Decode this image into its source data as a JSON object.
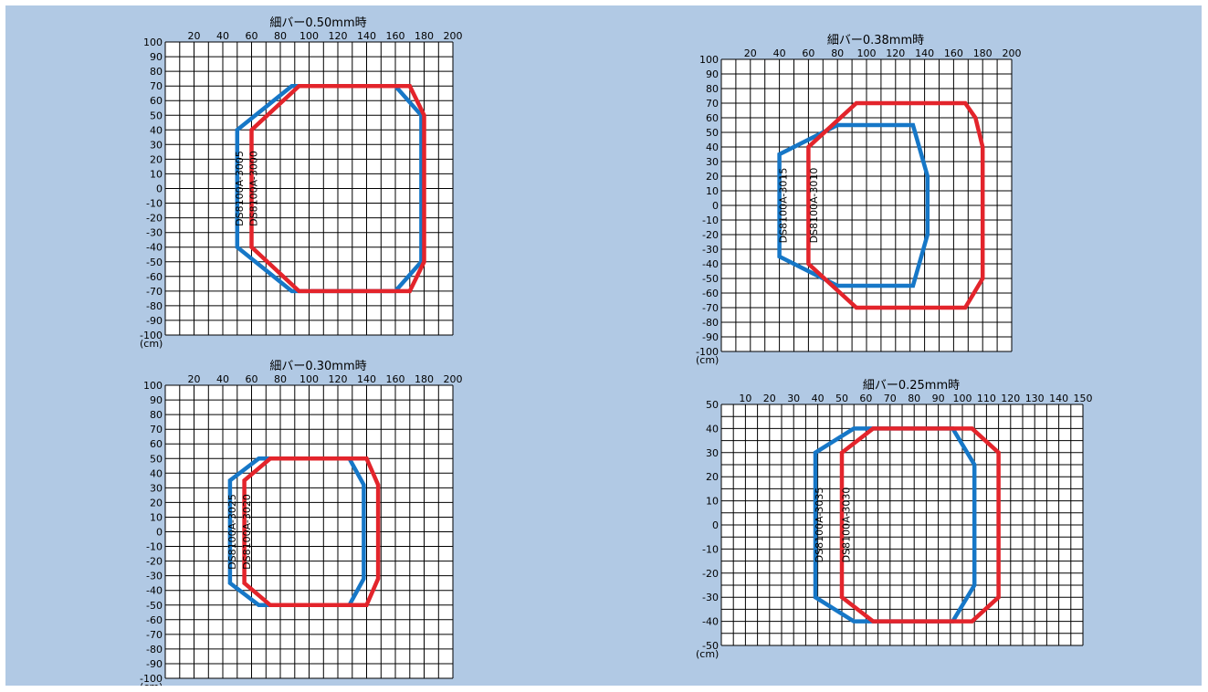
{
  "colors": {
    "background": "#b1c9e4",
    "plot_area": "#ffffff",
    "grid": "#000000",
    "blue_series": "#1677c7",
    "red_series": "#e3242b"
  },
  "chart_data": [
    {
      "type": "area",
      "title": "細バー0.50mm時",
      "unit_label": "(cm)",
      "x_ticks": [
        "20",
        "40",
        "60",
        "80",
        "100",
        "120",
        "140",
        "160",
        "180",
        "200"
      ],
      "y_ticks": [
        "100",
        "90",
        "80",
        "70",
        "60",
        "50",
        "40",
        "30",
        "20",
        "10",
        "0",
        "-10",
        "-20",
        "-30",
        "-40",
        "-50",
        "-60",
        "-70",
        "-80",
        "-90",
        "-100"
      ],
      "xlim": [
        0,
        200
      ],
      "ylim": [
        -100,
        100
      ],
      "x_step": 10,
      "y_step": 10,
      "series": [
        {
          "name": "DS8100A-3005",
          "color": "blue",
          "points": [
            [
              50,
              40
            ],
            [
              50,
              -40
            ],
            [
              88,
              -70
            ],
            [
              160,
              -70
            ],
            [
              178,
              -50
            ],
            [
              178,
              50
            ],
            [
              160,
              70
            ],
            [
              88,
              70
            ]
          ]
        },
        {
          "name": "DS8100A-3000",
          "color": "red",
          "points": [
            [
              60,
              40
            ],
            [
              60,
              -40
            ],
            [
              93,
              -70
            ],
            [
              170,
              -70
            ],
            [
              180,
              -50
            ],
            [
              180,
              50
            ],
            [
              170,
              70
            ],
            [
              93,
              70
            ]
          ]
        }
      ]
    },
    {
      "type": "area",
      "title": "細バー0.38mm時",
      "unit_label": "(cm)",
      "x_ticks": [
        "20",
        "40",
        "60",
        "80",
        "100",
        "120",
        "140",
        "160",
        "180",
        "200"
      ],
      "y_ticks": [
        "100",
        "90",
        "80",
        "70",
        "60",
        "50",
        "40",
        "30",
        "20",
        "10",
        "0",
        "-10",
        "-20",
        "-30",
        "-40",
        "-50",
        "-60",
        "-70",
        "-80",
        "-90",
        "-100"
      ],
      "xlim": [
        0,
        200
      ],
      "ylim": [
        -100,
        100
      ],
      "x_step": 10,
      "y_step": 10,
      "series": [
        {
          "name": "DS8100A-3015",
          "color": "blue",
          "points": [
            [
              40,
              35
            ],
            [
              40,
              -35
            ],
            [
              80,
              -55
            ],
            [
              132,
              -55
            ],
            [
              142,
              -20
            ],
            [
              142,
              20
            ],
            [
              132,
              55
            ],
            [
              80,
              55
            ]
          ]
        },
        {
          "name": "DS8100A-3010",
          "color": "red",
          "points": [
            [
              60,
              40
            ],
            [
              60,
              -40
            ],
            [
              93,
              -70
            ],
            [
              168,
              -70
            ],
            [
              180,
              -50
            ],
            [
              180,
              40
            ],
            [
              175,
              60
            ],
            [
              168,
              70
            ],
            [
              93,
              70
            ]
          ]
        }
      ]
    },
    {
      "type": "area",
      "title": "細バー0.30mm時",
      "unit_label": "(cm)",
      "x_ticks": [
        "20",
        "40",
        "60",
        "80",
        "100",
        "120",
        "140",
        "160",
        "180",
        "200"
      ],
      "y_ticks": [
        "100",
        "90",
        "80",
        "70",
        "60",
        "50",
        "40",
        "30",
        "20",
        "10",
        "0",
        "-10",
        "-20",
        "-30",
        "-40",
        "-50",
        "-60",
        "-70",
        "-80",
        "-90",
        "-100"
      ],
      "xlim": [
        0,
        200
      ],
      "ylim": [
        -100,
        100
      ],
      "x_step": 10,
      "y_step": 10,
      "series": [
        {
          "name": "DS8100A-3025",
          "color": "blue",
          "points": [
            [
              45,
              35
            ],
            [
              45,
              -35
            ],
            [
              65,
              -50
            ],
            [
              128,
              -50
            ],
            [
              138,
              -32
            ],
            [
              138,
              32
            ],
            [
              128,
              50
            ],
            [
              65,
              50
            ]
          ]
        },
        {
          "name": "DS8100A-3020",
          "color": "red",
          "points": [
            [
              55,
              35
            ],
            [
              55,
              -35
            ],
            [
              73,
              -50
            ],
            [
              140,
              -50
            ],
            [
              148,
              -32
            ],
            [
              148,
              32
            ],
            [
              140,
              50
            ],
            [
              73,
              50
            ]
          ]
        }
      ]
    },
    {
      "type": "area",
      "title": "細バー0.25mm時",
      "unit_label": "(cm)",
      "x_ticks": [
        "10",
        "20",
        "30",
        "40",
        "50",
        "60",
        "70",
        "80",
        "90",
        "100",
        "110",
        "120",
        "130",
        "140",
        "150"
      ],
      "y_ticks": [
        "50",
        "40",
        "30",
        "20",
        "10",
        "0",
        "-10",
        "-20",
        "-30",
        "-40",
        "-50"
      ],
      "xlim": [
        0,
        150
      ],
      "ylim": [
        -50,
        50
      ],
      "x_step": 5,
      "y_step": 5,
      "series": [
        {
          "name": "DS8100A-3035",
          "color": "blue",
          "points": [
            [
              39,
              30
            ],
            [
              39,
              -30
            ],
            [
              55,
              -40
            ],
            [
              96,
              -40
            ],
            [
              105,
              -25
            ],
            [
              105,
              25
            ],
            [
              96,
              40
            ],
            [
              55,
              40
            ]
          ]
        },
        {
          "name": "DS8100A-3030",
          "color": "red",
          "points": [
            [
              50,
              30
            ],
            [
              50,
              -30
            ],
            [
              63,
              -40
            ],
            [
              104,
              -40
            ],
            [
              115,
              -30
            ],
            [
              115,
              30
            ],
            [
              104,
              40
            ],
            [
              63,
              40
            ]
          ]
        }
      ]
    }
  ]
}
